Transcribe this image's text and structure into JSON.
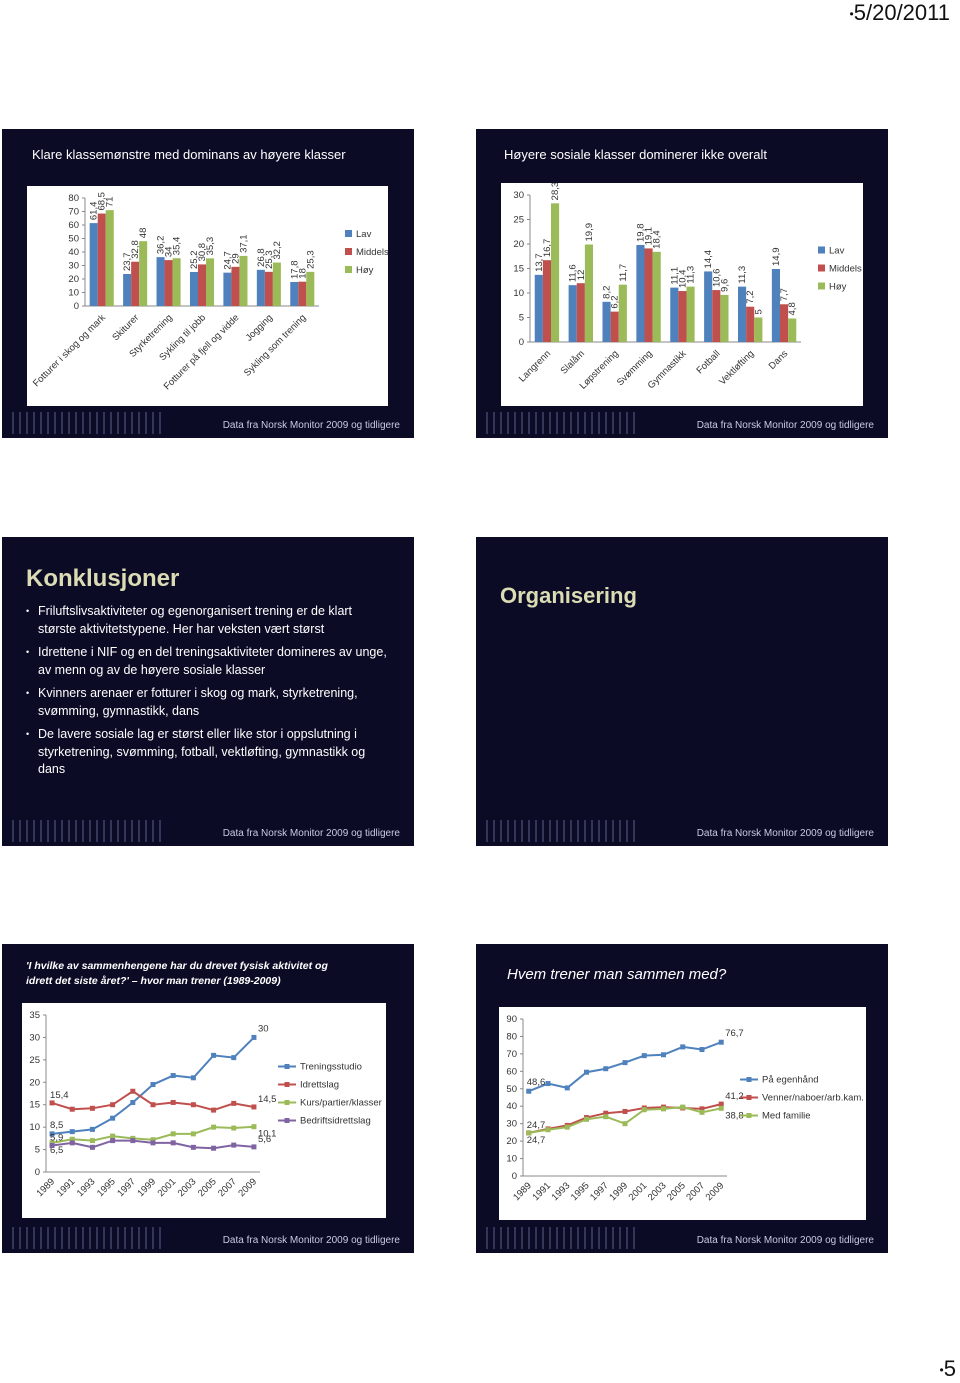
{
  "header": {
    "date": "5/20/2011"
  },
  "footer": {
    "page": "5"
  },
  "source": "Data fra Norsk Monitor 2009 og tidligere",
  "slides": [
    {
      "title": "Klare klassemønstre med dominans av høyere klasser",
      "chart": {
        "type": "bar",
        "categories": [
          "Fotturer i skog og mark",
          "Skiturer",
          "Styrketrening",
          "Sykling til jobb",
          "Fotturer på fjell og vidde",
          "Jogging",
          "Sykling som trening"
        ],
        "ylim": [
          0,
          80
        ],
        "yticks": [
          0,
          10,
          20,
          30,
          40,
          50,
          60,
          70,
          80
        ],
        "legend": "right",
        "series": [
          {
            "name": "Lav",
            "color": "#4f81bd",
            "values": [
              61.4,
              23.7,
              36.2,
              25.2,
              24.7,
              26.8,
              17.8
            ],
            "value_labels": [
              "61,4",
              "23,7",
              "36,2",
              "25,2",
              "24,7",
              "26,8",
              "17,8"
            ]
          },
          {
            "name": "Middels",
            "color": "#c0504d",
            "values": [
              68.5,
              32.8,
              34,
              30.8,
              29,
              25.3,
              18
            ],
            "value_labels": [
              "68,5",
              "32,8",
              "34",
              "30,8",
              "29",
              "25,3",
              "18"
            ]
          },
          {
            "name": "Høy",
            "color": "#9bbb59",
            "values": [
              71,
              48,
              35.4,
              35.3,
              37.1,
              32.2,
              25.3
            ],
            "value_labels": [
              "71",
              "48",
              "35,4",
              "35,3",
              "37,1",
              "32,2",
              "25,3"
            ]
          }
        ]
      }
    },
    {
      "title": "Høyere sosiale klasser dominerer ikke overalt",
      "chart": {
        "type": "bar",
        "categories": [
          "Langrenn",
          "Slalåm",
          "Løpstrening",
          "Svømming",
          "Gymnastikk",
          "Fotball",
          "Vektløfting",
          "Dans"
        ],
        "ylim": [
          0,
          30
        ],
        "yticks": [
          0,
          5,
          10,
          15,
          20,
          25,
          30
        ],
        "legend": "right",
        "series": [
          {
            "name": "Lav",
            "color": "#4f81bd",
            "values": [
              13.7,
              11.6,
              8.2,
              19.8,
              11.1,
              14.4,
              11.3,
              14.9
            ],
            "value_labels": [
              "13,7",
              "11,6",
              "8,2",
              "19,8",
              "11,1",
              "14,4",
              "11,3",
              "14,9"
            ]
          },
          {
            "name": "Middels",
            "color": "#c0504d",
            "values": [
              16.7,
              12,
              6.2,
              19.1,
              10.4,
              10.6,
              7.2,
              7.7
            ],
            "value_labels": [
              "16,7",
              "12",
              "6,2",
              "19,1",
              "10,4",
              "10,6",
              "7,2",
              "7,7"
            ]
          },
          {
            "name": "Høy",
            "color": "#9bbb59",
            "values": [
              28.3,
              19.9,
              11.7,
              18.4,
              11.3,
              9.6,
              5,
              4.8
            ],
            "value_labels": [
              "28,3",
              "19,9",
              "11,7",
              "18,4",
              "11,3",
              "9,6",
              "5",
              "4,8"
            ]
          }
        ]
      }
    },
    {
      "title": "Konklusjoner",
      "bullets": [
        "Friluftslivsaktiviteter og egenorganisert trening er de klart største aktivitetstypene. Her har veksten vært størst",
        "Idrettene i NIF og en del treningsaktiviteter domineres av unge, av menn og av de høyere sosiale klasser",
        "Kvinners arenaer er fotturer i skog og mark, styrketrening, svømming, gymnastikk, dans",
        "De lavere sosiale lag er størst eller like stor i oppslutning i styrketrening, svømming, fotball, vektløfting, gymnastikk og dans"
      ]
    },
    {
      "title": "Organisering"
    },
    {
      "title": "'I hvilke av sammenhengene har du drevet fysisk aktivitet og idrett det siste året?' – hvor man trener (1989-2009)",
      "chart": {
        "type": "line",
        "categories": [
          "1989",
          "1991",
          "1993",
          "1995",
          "1997",
          "1999",
          "2001",
          "2003",
          "2005",
          "2007",
          "2009"
        ],
        "ylim": [
          0,
          35
        ],
        "yticks": [
          0,
          5,
          10,
          15,
          20,
          25,
          30,
          35
        ],
        "legend": "right",
        "series": [
          {
            "name": "Treningsstudio",
            "color": "#4f81bd",
            "values": [
              8.5,
              9,
              9.5,
              12,
              15.5,
              19.5,
              21.5,
              21,
              26,
              25.5,
              30
            ],
            "value_labels": [
              "8,5",
              null,
              null,
              null,
              null,
              null,
              null,
              null,
              null,
              null,
              "30"
            ]
          },
          {
            "name": "Idrettslag",
            "color": "#c0504d",
            "values": [
              15.4,
              14,
              14.2,
              15,
              18,
              15,
              15.5,
              15,
              13.8,
              15.3,
              14.5
            ],
            "value_labels": [
              "15,4",
              null,
              null,
              null,
              null,
              null,
              null,
              null,
              null,
              null,
              "14,5"
            ]
          },
          {
            "name": "Kurs/partier/klasser",
            "color": "#9bbb59",
            "values": [
              6.5,
              7.3,
              7,
              8,
              7.5,
              7.2,
              8.5,
              8.5,
              10,
              9.8,
              10.1
            ],
            "value_labels": [
              "6,5",
              null,
              null,
              null,
              null,
              null,
              null,
              null,
              null,
              null,
              "10,1"
            ]
          },
          {
            "name": "Bedriftsidrettslag",
            "color": "#8064a2",
            "values": [
              5.9,
              6.5,
              5.5,
              7,
              7,
              6.5,
              6.5,
              5.5,
              5.3,
              6,
              5.6
            ],
            "value_labels": [
              "5,9",
              null,
              null,
              null,
              null,
              null,
              null,
              null,
              null,
              null,
              "5,6"
            ]
          }
        ]
      }
    },
    {
      "title": "Hvem trener man sammen med?",
      "chart": {
        "type": "line",
        "categories": [
          "1989",
          "1991",
          "1993",
          "1995",
          "1997",
          "1999",
          "2001",
          "2003",
          "2005",
          "2007",
          "2009"
        ],
        "ylim": [
          0,
          90
        ],
        "yticks": [
          0,
          10,
          20,
          30,
          40,
          50,
          60,
          70,
          80,
          90
        ],
        "legend": "right",
        "series": [
          {
            "name": "På egenhånd",
            "color": "#4f81bd",
            "values": [
              48.6,
              53,
              50.5,
              59.5,
              61.5,
              65,
              69,
              69.5,
              74,
              72.5,
              76.7
            ],
            "value_labels": [
              "48,6",
              null,
              null,
              null,
              null,
              null,
              null,
              null,
              null,
              null,
              "76,7"
            ]
          },
          {
            "name": "Venner/naboer/arb.kam.",
            "color": "#c0504d",
            "values": [
              24.7,
              27,
              29,
              33.5,
              36,
              37,
              39,
              39.5,
              39,
              38.5,
              41.2
            ],
            "value_labels": [
              "24,7",
              null,
              null,
              null,
              null,
              null,
              null,
              null,
              null,
              null,
              "41,2"
            ]
          },
          {
            "name": "Med familie",
            "color": "#9bbb59",
            "values": [
              24.7,
              26.5,
              28,
              32.5,
              34,
              30,
              38,
              38.5,
              39.5,
              36.5,
              38.8
            ],
            "value_labels": [
              "24,7",
              null,
              null,
              null,
              null,
              null,
              null,
              null,
              null,
              null,
              "38,8"
            ]
          }
        ]
      }
    }
  ]
}
